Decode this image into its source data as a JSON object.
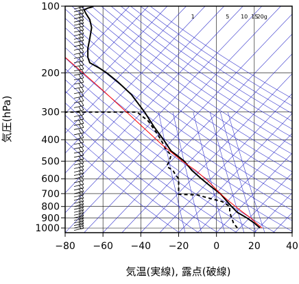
{
  "chart_data": {
    "type": "line",
    "title": "",
    "xlabel": "気温(実線), 露点(破線)",
    "ylabel": "気圧(hPa)",
    "xlim": [
      -80,
      40
    ],
    "ylim": [
      1050,
      100
    ],
    "y_scale": "log",
    "grid": true,
    "x_ticks": [
      "−80",
      "−60",
      "−40",
      "−20",
      "0",
      "20",
      "40"
    ],
    "y_ticks": [
      {
        "p": 100,
        "label": "100"
      },
      {
        "p": 200,
        "label": "200"
      },
      {
        "p": 300,
        "label": "300"
      },
      {
        "p": 400,
        "label": "400"
      },
      {
        "p": 500,
        "label": "500"
      },
      {
        "p": 600,
        "label": "600"
      },
      {
        "p": 700,
        "label": "700"
      },
      {
        "p": 800,
        "label": "800"
      },
      {
        "p": 900,
        "label": "900"
      },
      {
        "p": 1000,
        "label": "1000"
      }
    ],
    "mixing_ratio_labels": [
      {
        "w": 1,
        "label": "1"
      },
      {
        "w": 5,
        "label": "5"
      },
      {
        "w": 10,
        "label": "10"
      },
      {
        "w": 15,
        "label": "15"
      },
      {
        "w": 20,
        "label": "20g"
      }
    ],
    "colors": {
      "temperature": "#000000",
      "dewpoint": "#000000",
      "parcel": "#ff0000",
      "dry_adiabat": "#3333cc",
      "isotherm": "#3333cc",
      "grid": "#000000"
    },
    "series": [
      {
        "key": "temperature",
        "style": "solid",
        "points": [
          [
            23,
            1000
          ],
          [
            20,
            950
          ],
          [
            16,
            900
          ],
          [
            11,
            850
          ],
          [
            8,
            800
          ],
          [
            5,
            750
          ],
          [
            2,
            700
          ],
          [
            -3,
            650
          ],
          [
            -8,
            600
          ],
          [
            -13,
            550
          ],
          [
            -17,
            500
          ],
          [
            -21,
            470
          ],
          [
            -24,
            450
          ],
          [
            -28,
            400
          ],
          [
            -33,
            350
          ],
          [
            -38,
            300
          ],
          [
            -45,
            250
          ],
          [
            -52,
            220
          ],
          [
            -58,
            200
          ],
          [
            -62,
            190
          ],
          [
            -67,
            180
          ],
          [
            -68,
            170
          ],
          [
            -68,
            155
          ],
          [
            -67,
            140
          ],
          [
            -66,
            125
          ],
          [
            -67,
            115
          ],
          [
            -69,
            108
          ],
          [
            -70,
            104
          ],
          [
            -68,
            102
          ],
          [
            -66,
            101
          ],
          [
            -65,
            100
          ]
        ]
      },
      {
        "key": "dewpoint",
        "style": "dashed",
        "points": [
          [
            11,
            1000
          ],
          [
            9,
            950
          ],
          [
            8,
            900
          ],
          [
            7,
            850
          ],
          [
            7,
            800
          ],
          [
            3,
            760
          ],
          [
            -5,
            730
          ],
          [
            -10,
            710
          ],
          [
            -20,
            705
          ],
          [
            -20,
            650
          ],
          [
            -20,
            600
          ],
          [
            -22,
            570
          ],
          [
            -23,
            550
          ],
          [
            -26,
            530
          ],
          [
            -26,
            520
          ],
          [
            -25,
            500
          ],
          [
            -24,
            470
          ],
          [
            -27,
            440
          ],
          [
            -28,
            420
          ],
          [
            -31,
            380
          ],
          [
            -36,
            330
          ],
          [
            -42,
            300
          ],
          [
            -80,
            300
          ]
        ]
      },
      {
        "key": "parcel",
        "style": "solid",
        "points": [
          [
            24,
            1000
          ],
          [
            21,
            950
          ],
          [
            18,
            900
          ],
          [
            14,
            850
          ],
          [
            10,
            800
          ],
          [
            6,
            750
          ],
          [
            2,
            700
          ],
          [
            -4,
            620
          ],
          [
            -11,
            550
          ],
          [
            -18,
            500
          ],
          [
            -29,
            420
          ],
          [
            -44,
            320
          ],
          [
            -60,
            240
          ],
          [
            -80,
            170
          ]
        ]
      }
    ],
    "wind_barb_column": {
      "pressures": [
        100,
        103,
        106,
        110,
        114,
        118,
        122,
        126,
        131,
        136,
        141,
        146,
        152,
        158,
        165,
        172,
        180,
        188,
        196,
        205,
        215,
        225,
        236,
        248,
        260,
        273,
        287,
        300,
        315,
        330,
        345,
        360,
        380,
        400,
        420,
        440,
        460,
        480,
        500,
        520,
        540,
        560,
        580,
        600,
        625,
        650,
        675,
        700,
        725,
        750,
        775,
        800,
        825,
        850,
        875,
        900,
        925,
        950,
        975,
        1000,
        1025
      ]
    }
  }
}
